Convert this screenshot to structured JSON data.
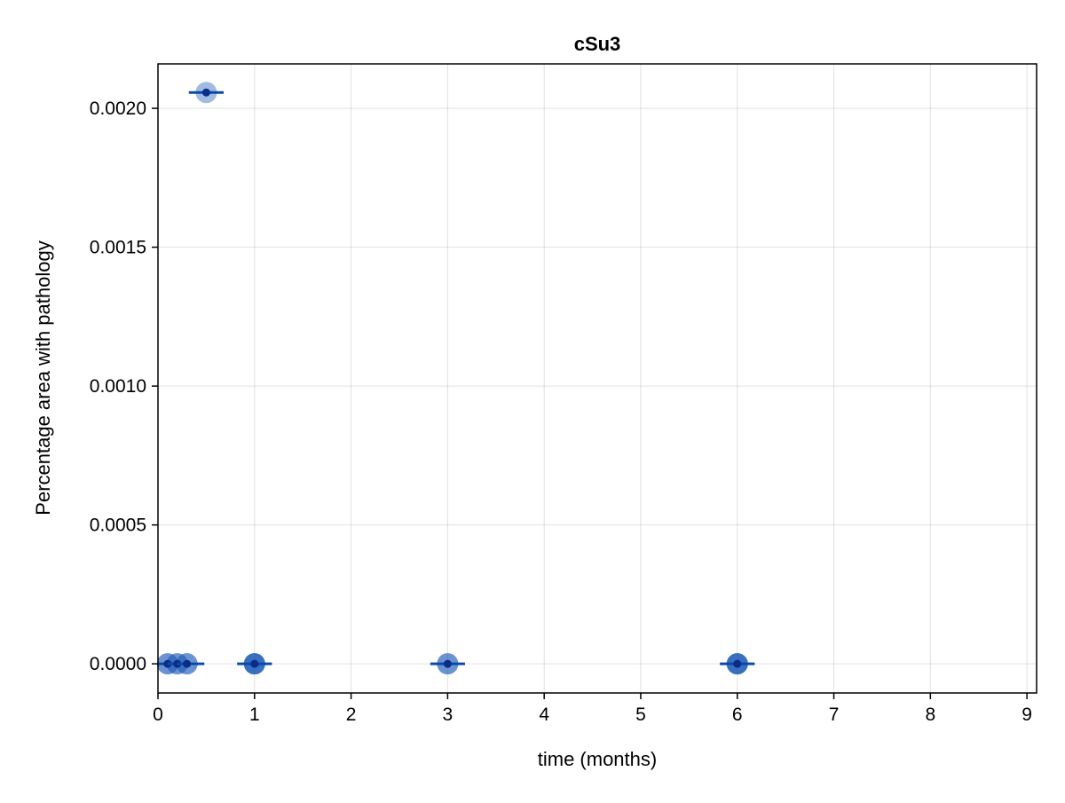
{
  "chart_data": {
    "type": "scatter",
    "title": "cSu3",
    "xlabel": "time (months)",
    "ylabel": "Percentage area with pathology",
    "xlim": [
      0,
      9.1
    ],
    "ylim": [
      -0.000105,
      0.00216
    ],
    "x_ticks": [
      0,
      1,
      2,
      3,
      4,
      5,
      6,
      7,
      8,
      9
    ],
    "x_tick_labels": [
      "0",
      "1",
      "2",
      "3",
      "4",
      "5",
      "6",
      "7",
      "8",
      "9"
    ],
    "y_ticks": [
      0,
      0.0005,
      0.001,
      0.0015,
      0.002
    ],
    "y_tick_labels": [
      "0.0000",
      "0.0005",
      "0.0010",
      "0.0015",
      "0.0020"
    ],
    "grid": true,
    "legend": "none",
    "colors": {
      "point": "#1f5cb8",
      "mean_line": "#0a4aa8",
      "mean_dot": "#0a2d8a"
    },
    "points": [
      {
        "x": 0.1,
        "y": 0
      },
      {
        "x": 0.1,
        "y": 0
      },
      {
        "x": 0.2,
        "y": 0
      },
      {
        "x": 0.2,
        "y": 0
      },
      {
        "x": 0.3,
        "y": 0
      },
      {
        "x": 0.3,
        "y": 0
      },
      {
        "x": 0.5,
        "y": 0.002057
      },
      {
        "x": 1.0,
        "y": 0
      },
      {
        "x": 1.0,
        "y": 0
      },
      {
        "x": 1.0,
        "y": 0
      },
      {
        "x": 1.0,
        "y": 0
      },
      {
        "x": 3.0,
        "y": 0
      },
      {
        "x": 3.0,
        "y": 0
      },
      {
        "x": 6.0,
        "y": 0
      },
      {
        "x": 6.0,
        "y": 0
      },
      {
        "x": 6.0,
        "y": 0
      },
      {
        "x": 6.0,
        "y": 0
      }
    ],
    "means": [
      {
        "x": 0.1,
        "y": 0,
        "x_range": [
          0.0,
          0.2
        ]
      },
      {
        "x": 0.2,
        "y": 0,
        "x_range": [
          0.1,
          0.3
        ]
      },
      {
        "x": 0.3,
        "y": 0,
        "x_range": [
          0.2,
          0.48
        ]
      },
      {
        "x": 0.5,
        "y": 0.002057,
        "x_range": [
          0.32,
          0.68
        ]
      },
      {
        "x": 1.0,
        "y": 0,
        "x_range": [
          0.82,
          1.18
        ]
      },
      {
        "x": 3.0,
        "y": 0,
        "x_range": [
          2.82,
          3.18
        ]
      },
      {
        "x": 6.0,
        "y": 0,
        "x_range": [
          5.82,
          6.18
        ]
      }
    ]
  }
}
